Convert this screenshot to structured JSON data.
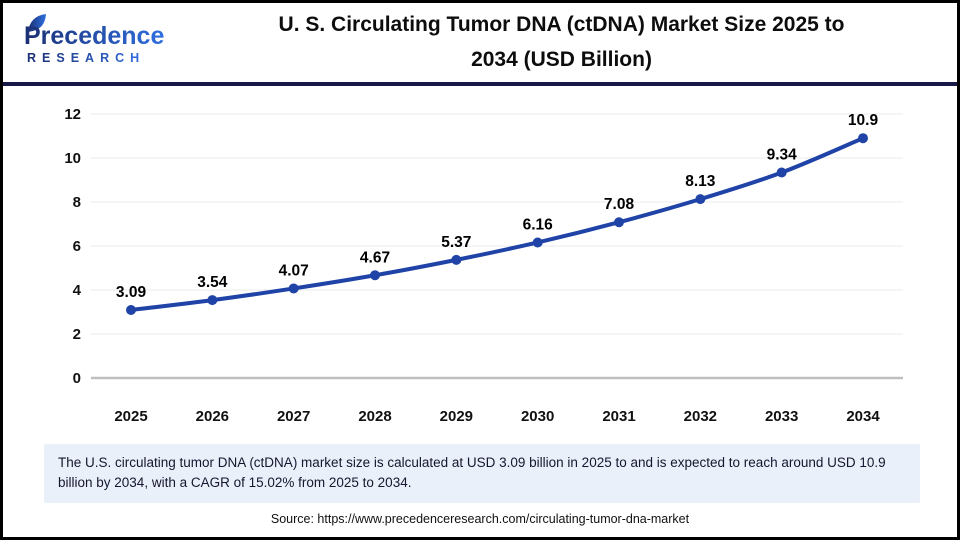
{
  "header": {
    "logo": {
      "name": "Precedence",
      "subname": "RESEARCH"
    },
    "title_line1": "U. S. Circulating Tumor DNA (ctDNA) Market Size 2025 to",
    "title_line2": "2034 (USD Billion)"
  },
  "chart_data": {
    "type": "line",
    "title": "U. S. Circulating Tumor DNA (ctDNA) Market Size 2025 to 2034 (USD Billion)",
    "categories": [
      "2025",
      "2026",
      "2027",
      "2028",
      "2029",
      "2030",
      "2031",
      "2032",
      "2033",
      "2034"
    ],
    "values": [
      3.09,
      3.54,
      4.07,
      4.67,
      5.37,
      6.16,
      7.08,
      8.13,
      9.34,
      10.9
    ],
    "value_labels": [
      "3.09",
      "3.54",
      "4.07",
      "4.67",
      "5.37",
      "6.16",
      "7.08",
      "8.13",
      "9.34",
      "10.9"
    ],
    "xlabel": "",
    "ylabel": "",
    "ylim": [
      0,
      12
    ],
    "yticks": [
      0,
      2,
      4,
      6,
      8,
      10,
      12
    ],
    "grid": true,
    "legend": false,
    "data_labels": true,
    "line_color": "#1F43A6",
    "marker": "circle"
  },
  "footer": {
    "description": "The U.S. circulating tumor DNA (ctDNA) market size is calculated at USD 3.09 billion in 2025 to and is expected to reach around USD 10.9 billion by 2034, with a CAGR of 15.02% from 2025 to 2034.",
    "source": "Source: https://www.precedenceresearch.com/circulating-tumor-dna-market"
  },
  "colors": {
    "line": "#1F43A6",
    "header_separator": "#191947",
    "description_bg": "#E9F0FA",
    "gridline": "#EFEFEF",
    "zero_axis": "#BFBFBF",
    "logo_gradient_start": "#1B2F74",
    "logo_gradient_end": "#2F6FE0"
  }
}
